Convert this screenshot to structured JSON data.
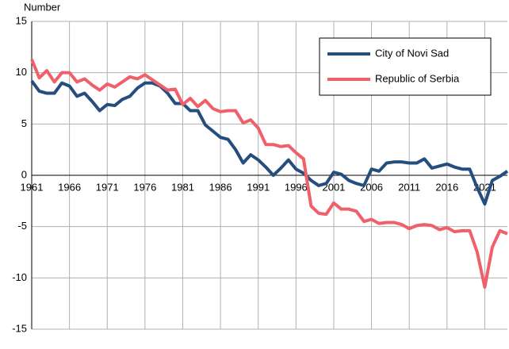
{
  "chart_data": {
    "type": "line",
    "y_axis_label": "Number",
    "x": [
      1961,
      1962,
      1963,
      1964,
      1965,
      1966,
      1967,
      1968,
      1969,
      1970,
      1971,
      1972,
      1973,
      1974,
      1975,
      1976,
      1977,
      1978,
      1979,
      1980,
      1981,
      1982,
      1983,
      1984,
      1985,
      1986,
      1987,
      1988,
      1989,
      1990,
      1991,
      1992,
      1993,
      1994,
      1995,
      1996,
      1997,
      1998,
      1999,
      2000,
      2001,
      2002,
      2003,
      2004,
      2005,
      2006,
      2007,
      2008,
      2009,
      2010,
      2011,
      2012,
      2013,
      2014,
      2015,
      2016,
      2017,
      2018,
      2019,
      2020,
      2021,
      2022,
      2023,
      2024
    ],
    "series": [
      {
        "name": "City of Novi Sad",
        "color": "#254e7e",
        "values": [
          9.2,
          8.2,
          8.0,
          8.0,
          9.0,
          8.7,
          7.7,
          8.0,
          7.2,
          6.3,
          6.9,
          6.8,
          7.4,
          7.7,
          8.5,
          9.0,
          9.0,
          8.7,
          8.0,
          7.0,
          7.0,
          6.3,
          6.3,
          4.9,
          4.3,
          3.7,
          3.5,
          2.5,
          1.2,
          2.0,
          1.5,
          0.8,
          0,
          0.7,
          1.5,
          0.6,
          0.2,
          -0.5,
          -1.0,
          -0.8,
          0.3,
          0.1,
          -0.5,
          -0.8,
          -1.0,
          0.6,
          0.4,
          1.2,
          1.3,
          1.3,
          1.2,
          1.2,
          1.6,
          0.7,
          0.9,
          1.1,
          0.8,
          0.6,
          0.6,
          -1.2,
          -2.8,
          -0.5,
          -0.1,
          0.4
        ]
      },
      {
        "name": "Republic of Serbia",
        "color": "#f0606a",
        "values": [
          11.3,
          9.5,
          10.2,
          9.1,
          10.0,
          10.0,
          9.1,
          9.4,
          8.8,
          8.3,
          8.9,
          8.6,
          9.1,
          9.6,
          9.4,
          9.8,
          9.3,
          8.8,
          8.3,
          8.4,
          6.9,
          7.5,
          6.7,
          7.3,
          6.5,
          6.2,
          6.3,
          6.3,
          5.1,
          5.4,
          4.6,
          3.0,
          3.0,
          2.8,
          2.9,
          2.2,
          1.6,
          -3.0,
          -3.7,
          -3.8,
          -2.7,
          -3.3,
          -3.3,
          -3.5,
          -4.5,
          -4.3,
          -4.7,
          -4.6,
          -4.6,
          -4.8,
          -5.2,
          -4.9,
          -4.8,
          -4.9,
          -5.3,
          -5.1,
          -5.5,
          -5.4,
          -5.4,
          -7.5,
          -10.9,
          -7.0,
          -5.4,
          -5.7
        ]
      }
    ],
    "xlim": [
      1961,
      2024
    ],
    "xticks": [
      1961,
      1966,
      1971,
      1976,
      1981,
      1986,
      1991,
      1996,
      2001,
      2006,
      2011,
      2016,
      2021
    ],
    "ylim": [
      -15,
      15
    ],
    "yticks": [
      -15,
      -10,
      -5,
      0,
      5,
      10,
      15
    ],
    "grid": true,
    "legend_position": "upper right"
  }
}
